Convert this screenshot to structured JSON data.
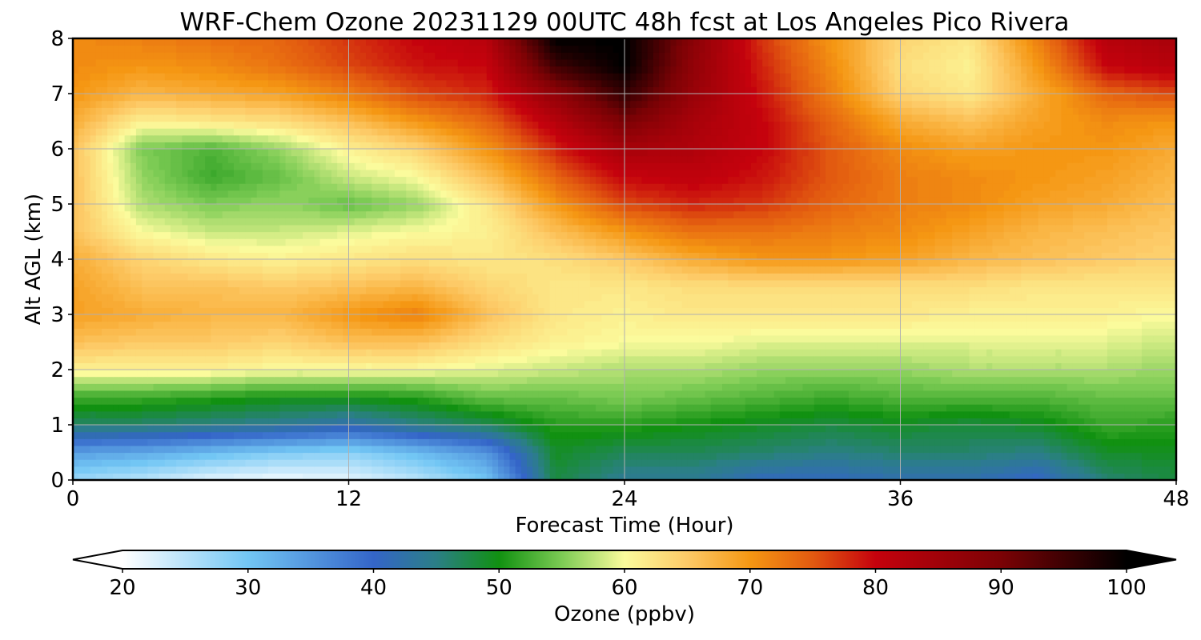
{
  "chart_data": {
    "type": "heatmap",
    "title": "WRF-Chem Ozone  20231129 00UTC 48h fcst at Los Angeles Pico Rivera",
    "xlabel": "Forecast Time (Hour)",
    "ylabel": "Alt AGL (km)",
    "xlim": [
      0,
      48
    ],
    "ylim": [
      0,
      8
    ],
    "x_ticks": [
      0,
      12,
      24,
      36,
      48
    ],
    "y_ticks": [
      0,
      1,
      2,
      3,
      4,
      5,
      6,
      7,
      8
    ],
    "grid": true,
    "x": [
      0,
      3,
      6,
      9,
      12,
      15,
      18,
      21,
      24,
      27,
      30,
      33,
      36,
      39,
      42,
      45,
      48
    ],
    "y": [
      0,
      0.5,
      1,
      1.5,
      2,
      2.5,
      3,
      3.5,
      4,
      4.5,
      5,
      5.5,
      6,
      6.5,
      7,
      7.5,
      8
    ],
    "z": [
      [
        27,
        25,
        22,
        21,
        22,
        25,
        30,
        48,
        44,
        44,
        41,
        41,
        42,
        42,
        40,
        46,
        48
      ],
      [
        34,
        33,
        31,
        29,
        28,
        31,
        35,
        49,
        47,
        47,
        46,
        45,
        46,
        46,
        45,
        49,
        49
      ],
      [
        46,
        46,
        45,
        44,
        42,
        45,
        47,
        51,
        51,
        50,
        49,
        48,
        49,
        48,
        49,
        52,
        51
      ],
      [
        52,
        52,
        51,
        50,
        50,
        51,
        54,
        54,
        55,
        54,
        53,
        52,
        53,
        53,
        53,
        54,
        54
      ],
      [
        61,
        61,
        61,
        60,
        60,
        60,
        59,
        58,
        57,
        57,
        56,
        56,
        56,
        57,
        57,
        57,
        56
      ],
      [
        66,
        65,
        65,
        64,
        66,
        66,
        63,
        61,
        60,
        60,
        59,
        59,
        59,
        59,
        59,
        59,
        58
      ],
      [
        69,
        68,
        67,
        67,
        70,
        72,
        66,
        62,
        61,
        62,
        62,
        62,
        62,
        61,
        61,
        61,
        60
      ],
      [
        69,
        66,
        66,
        65,
        66,
        67,
        64,
        62,
        62,
        63,
        63,
        63,
        63,
        63,
        62,
        62,
        62
      ],
      [
        68,
        64,
        62,
        61,
        62,
        63,
        62,
        63,
        65,
        68,
        70,
        70,
        69,
        67,
        66,
        65,
        64
      ],
      [
        66,
        60,
        58,
        58,
        59,
        60,
        61,
        66,
        70,
        73,
        73,
        72,
        71,
        69,
        67,
        66,
        65
      ],
      [
        66,
        57,
        55,
        56,
        54,
        56,
        62,
        70,
        76,
        78,
        77,
        74,
        72,
        71,
        69,
        68,
        66
      ],
      [
        66,
        56,
        52,
        54,
        58,
        60,
        66,
        74,
        80,
        81,
        79,
        75,
        72,
        71,
        70,
        69,
        67
      ],
      [
        66,
        55,
        53,
        56,
        61,
        64,
        70,
        78,
        84,
        83,
        80,
        75,
        71,
        69,
        70,
        70,
        68
      ],
      [
        68,
        61,
        62,
        63,
        66,
        70,
        74,
        82,
        90,
        84,
        80,
        74,
        68,
        66,
        69,
        71,
        70
      ],
      [
        70,
        67,
        68,
        69,
        72,
        76,
        78,
        87,
        96,
        86,
        79,
        72,
        64,
        62,
        68,
        74,
        76
      ],
      [
        71,
        70,
        71,
        73,
        76,
        79,
        80,
        95,
        100,
        87,
        78,
        71,
        63,
        61,
        70,
        80,
        82
      ],
      [
        71,
        72,
        73,
        74,
        77,
        80,
        82,
        100,
        100,
        88,
        77,
        70,
        64,
        62,
        72,
        82,
        84
      ]
    ],
    "colorbar": {
      "label": "Ozone  (ppbv)",
      "min": 20,
      "max": 100,
      "extend": "both",
      "ticks": [
        20,
        30,
        40,
        50,
        60,
        70,
        80,
        90,
        100
      ],
      "stops": [
        {
          "value": 20,
          "color": "#ffffff"
        },
        {
          "value": 30,
          "color": "#72c6f4"
        },
        {
          "value": 40,
          "color": "#3465c8"
        },
        {
          "value": 45,
          "color": "#2b7f86"
        },
        {
          "value": 50,
          "color": "#119111"
        },
        {
          "value": 55,
          "color": "#7ccb54"
        },
        {
          "value": 60,
          "color": "#fbfb9c"
        },
        {
          "value": 65,
          "color": "#fdca67"
        },
        {
          "value": 70,
          "color": "#f59713"
        },
        {
          "value": 75,
          "color": "#e25a10"
        },
        {
          "value": 80,
          "color": "#c5020d"
        },
        {
          "value": 90,
          "color": "#7b0205"
        },
        {
          "value": 100,
          "color": "#000000"
        }
      ]
    }
  }
}
